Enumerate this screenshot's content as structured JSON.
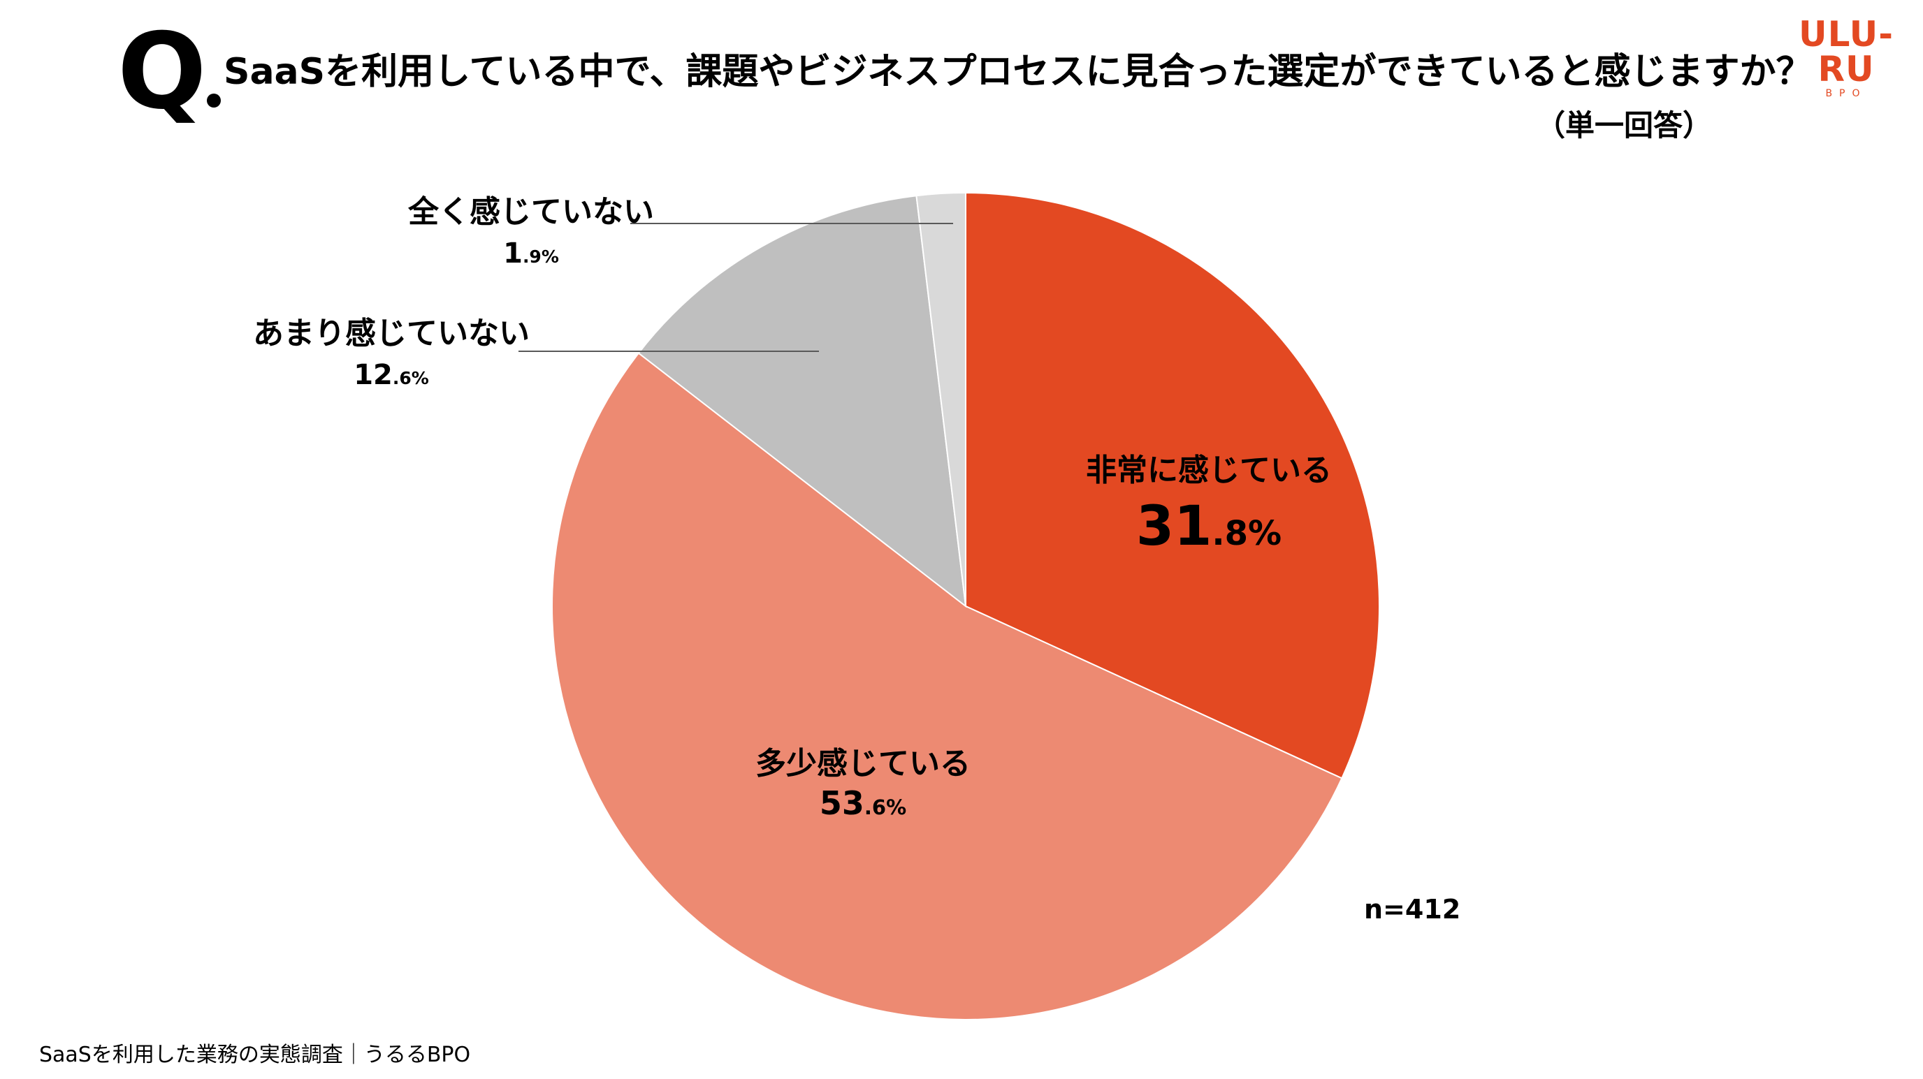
{
  "header": {
    "q_mark": "Q",
    "question": "SaaSを利用している中で、課題やビジネスプロセスに見合った選定ができていると感じますか？",
    "answer_type": "（単一回答）"
  },
  "logo": {
    "main": "ULU-RU",
    "sub": "BPO"
  },
  "chart_data": {
    "type": "pie",
    "title": "",
    "slices": [
      {
        "label": "非常に感じている",
        "value": 31.8,
        "color": "#e34922"
      },
      {
        "label": "多少感じている",
        "value": 53.6,
        "color": "#ed8a72"
      },
      {
        "label": "あまり感じていない",
        "value": 12.6,
        "color": "#bfbfbf"
      },
      {
        "label": "全く感じていない",
        "value": 1.9,
        "color": "#d9d9d9"
      }
    ],
    "start": "12 o'clock",
    "direction": "clockwise",
    "legend": "none",
    "unit": "%"
  },
  "sample_size": "n=412",
  "footer": "SaaSを利用した業務の実態調査｜うるるBPO"
}
